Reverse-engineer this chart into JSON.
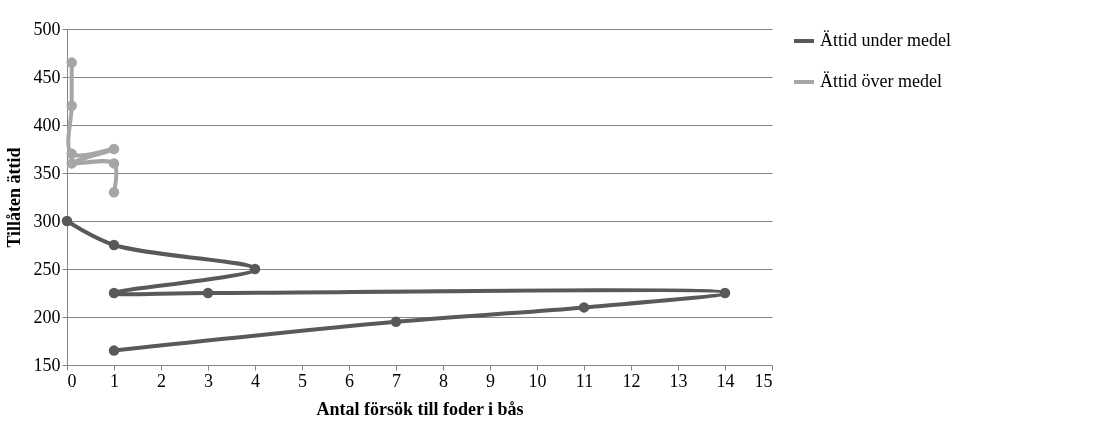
{
  "chart_data": {
    "type": "line",
    "xlabel": "Antal försök till foder i bås",
    "ylabel": "Tillåten ättid",
    "xlim": [
      0,
      15
    ],
    "xticks": [
      0,
      1,
      2,
      3,
      4,
      5,
      6,
      7,
      8,
      9,
      10,
      11,
      12,
      13,
      14,
      15
    ],
    "ylim": [
      150,
      500
    ],
    "yticks": [
      150,
      200,
      250,
      300,
      350,
      400,
      450,
      500
    ],
    "grid": "y",
    "legend": "right",
    "marker": "circle",
    "line_style": "solid",
    "series": [
      {
        "name": "Ättid under medel",
        "color": "#595959",
        "x": [
          0,
          1,
          4,
          1,
          3,
          14,
          11,
          7,
          1
        ],
        "values": [
          300,
          275,
          250,
          225,
          225,
          225,
          210,
          195,
          165
        ]
      },
      {
        "name": "Ättid över medel",
        "color": "#a6a6a6",
        "x": [
          0.1,
          0.1,
          0.1,
          1,
          0.1,
          1,
          1
        ],
        "values": [
          465,
          420,
          370,
          375,
          360,
          360,
          330
        ]
      }
    ]
  }
}
